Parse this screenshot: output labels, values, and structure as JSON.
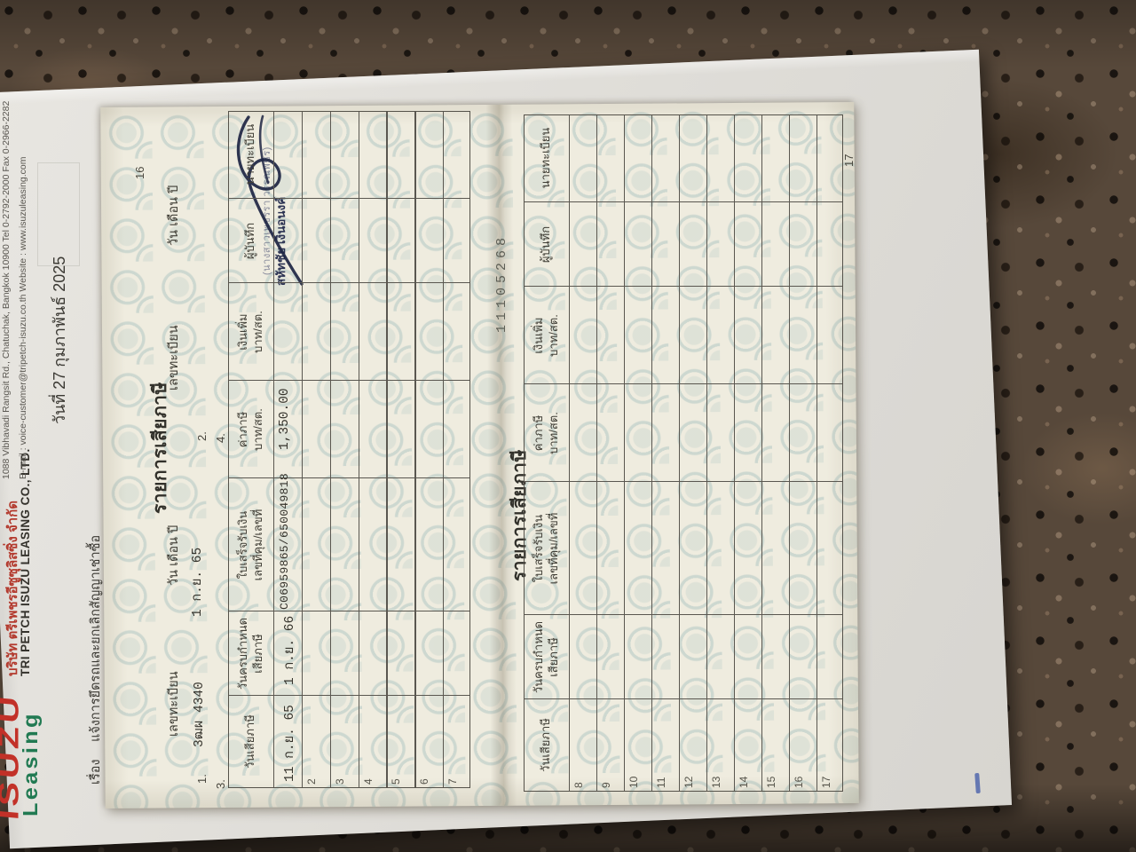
{
  "colors": {
    "isuzu_red": "#c23128",
    "leasing_green": "#217a52",
    "watermark_teal": "#7fa8ac",
    "signature_ink": "#1d2543",
    "booklet_cream": "#efecdf"
  },
  "letterhead": {
    "logo_main": "ISUZU",
    "logo_sub": "Leasing",
    "company_th": "บริษัท ตรีเพชรอีซูซุลิสซิ่ง จำกัด",
    "company_en": "TRI PETCH ISUZU LEASING CO., LTD.",
    "address": "1088 Vibhavadi Rangsit Rd., Chatuchak, Bangkok 10900 Tel 0-2792-2000 Fax 0-2966-2282",
    "contact": "E-mail : voice-customer@tripetch-isuzu.co.th Website : www.isuzuleasing.com",
    "date_line": "วันที่ 27 กุมภาพันธ์ 2025",
    "subject_label": "เรื่อง",
    "subject_text": "แจ้งการยึดรถและยกเลิกสัญญาเช่าซื้อ"
  },
  "tax_book": {
    "serial_stamp": "11105268",
    "columns": [
      [
        "วันเสียภาษี",
        ""
      ],
      [
        "วันครบกำหนด",
        "เสียภาษี"
      ],
      [
        "ใบเสร็จรับเงิน",
        "เลขที่คุม/เลขที่"
      ],
      [
        "ค่าภาษี",
        "บาท/สต."
      ],
      [
        "เงินเพิ่ม",
        "บาท/สต."
      ],
      [
        "ผู้บันทึก",
        ""
      ],
      [
        "นายทะเบียน",
        ""
      ]
    ],
    "page_left": {
      "page_number": "16",
      "title": "รายการเสียภาษี",
      "reg_no_label": "เลขทะเบียน",
      "date_label": "วัน เดือน ปี",
      "entry_slots": [
        "1.",
        "2.",
        "3.",
        "4."
      ],
      "reg_no_value": "3ฒผ 4340",
      "reg_date_value": "1 ก.ย. 65",
      "row_numbers": [
        "",
        "2",
        "3",
        "4",
        "5",
        "6",
        "7"
      ],
      "first_row": {
        "tax_paid_date": "11 ก.ย. 65",
        "due_date": "1 ก.ย. 66",
        "receipt_no": "C06959865/650049818",
        "tax_amount": "1,350.00",
        "surcharge": "",
        "recorder_stamp": "สหัทชัย เงินอนงค์",
        "registrar_name_stamp": "(นางสาวเพชรรา วรรณพชร)"
      }
    },
    "page_right": {
      "page_number": "17",
      "title": "รายการเสียภาษี",
      "row_numbers": [
        "8",
        "9",
        "10",
        "11",
        "12",
        "13",
        "14",
        "15",
        "16",
        "17"
      ]
    }
  }
}
